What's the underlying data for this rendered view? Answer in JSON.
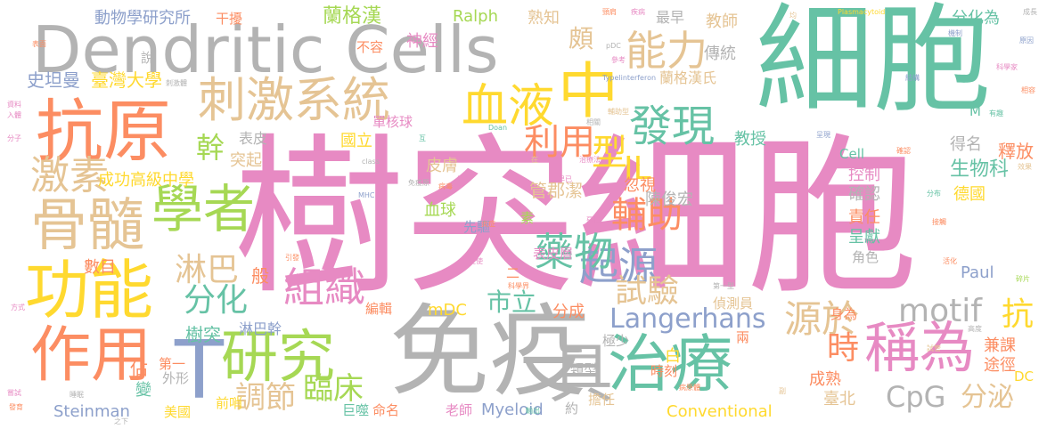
{
  "palette": {
    "pink": "#e78ac3",
    "green": "#66c2a5",
    "gray": "#b3b3b3",
    "orange": "#fc8d62",
    "blue": "#8da0cb",
    "lime": "#a6d854",
    "yellow": "#ffd92f",
    "tan": "#e5c494"
  },
  "words": [
    {
      "text": "樹突細胞",
      "color": "pink"
    },
    {
      "text": "細胞",
      "color": "green"
    },
    {
      "text": "Dendritic Cells",
      "color": "gray"
    },
    {
      "text": "免疫",
      "color": "gray"
    },
    {
      "text": "抗原",
      "color": "orange"
    },
    {
      "text": "刺激系統",
      "color": "tan"
    },
    {
      "text": "中",
      "color": "yellow"
    },
    {
      "text": "血液",
      "color": "yellow"
    },
    {
      "text": "能力",
      "color": "tan"
    },
    {
      "text": "功能",
      "color": "yellow"
    },
    {
      "text": "骨髓",
      "color": "tan"
    },
    {
      "text": "學者",
      "color": "lime"
    },
    {
      "text": "作用",
      "color": "orange"
    },
    {
      "text": "研究",
      "color": "lime"
    },
    {
      "text": "T",
      "color": "blue"
    },
    {
      "text": "治療",
      "color": "green"
    },
    {
      "text": "稱為",
      "color": "pink"
    },
    {
      "text": "具",
      "color": "gray"
    },
    {
      "text": "發現",
      "color": "green"
    },
    {
      "text": "激素",
      "color": "tan"
    },
    {
      "text": "Langerhans",
      "color": "blue"
    },
    {
      "text": "motif",
      "color": "gray"
    },
    {
      "text": "CpG",
      "color": "gray"
    },
    {
      "text": "源於",
      "color": "tan"
    },
    {
      "text": "起源",
      "color": "blue"
    },
    {
      "text": "型",
      "color": "yellow"
    },
    {
      "text": "利用",
      "color": "orange"
    },
    {
      "text": "輔助",
      "color": "orange"
    },
    {
      "text": "IL",
      "color": "yellow"
    },
    {
      "text": "藥物",
      "color": "green"
    },
    {
      "text": "組織",
      "color": "pink"
    },
    {
      "text": "淋巴",
      "color": "tan"
    },
    {
      "text": "分化",
      "color": "green"
    },
    {
      "text": "幹",
      "color": "lime"
    },
    {
      "text": "時",
      "color": "orange"
    },
    {
      "text": "臨床",
      "color": "lime"
    },
    {
      "text": "調節",
      "color": "tan"
    },
    {
      "text": "試驗",
      "color": "tan"
    },
    {
      "text": "抗",
      "color": "yellow"
    },
    {
      "text": "分泌",
      "color": "tan"
    },
    {
      "text": "市立",
      "color": "green"
    },
    {
      "text": "頗",
      "color": "tan"
    },
    {
      "text": "Steinman",
      "color": "blue"
    },
    {
      "text": "Myeloid",
      "color": "blue"
    },
    {
      "text": "Conventional",
      "color": "yellow"
    },
    {
      "text": "Paul",
      "color": "blue"
    },
    {
      "text": "mDC",
      "color": "yellow"
    },
    {
      "text": "Ralph",
      "color": "lime"
    },
    {
      "text": "動物學研究所",
      "color": "blue"
    },
    {
      "text": "干擾",
      "color": "orange"
    },
    {
      "text": "蘭格漢",
      "color": "lime"
    },
    {
      "text": "熟知",
      "color": "tan"
    },
    {
      "text": "分化為",
      "color": "green"
    },
    {
      "text": "教師",
      "color": "tan"
    },
    {
      "text": "最早",
      "color": "gray"
    },
    {
      "text": "傳統",
      "color": "gray"
    },
    {
      "text": "神經",
      "color": "pink"
    },
    {
      "text": "不容",
      "color": "orange"
    },
    {
      "text": "史坦曼",
      "color": "blue"
    },
    {
      "text": "臺灣大學",
      "color": "yellow"
    },
    {
      "text": "蘭格漢氏",
      "color": "tan"
    },
    {
      "text": "國立",
      "color": "yellow"
    },
    {
      "text": "管郡潔",
      "color": "tan"
    },
    {
      "text": "陳俊宏",
      "color": "gray"
    },
    {
      "text": "單核球",
      "color": "pink"
    },
    {
      "text": "成功高級中學",
      "color": "yellow"
    },
    {
      "text": "生物科",
      "color": "green"
    },
    {
      "text": "釋放",
      "color": "orange"
    },
    {
      "text": "德國",
      "color": "yellow"
    },
    {
      "text": "得名",
      "color": "gray"
    },
    {
      "text": "控制",
      "color": "pink"
    },
    {
      "text": "確認",
      "color": "gray"
    },
    {
      "text": "責任",
      "color": "orange"
    },
    {
      "text": "呈獻",
      "color": "green"
    },
    {
      "text": "教授",
      "color": "green"
    },
    {
      "text": "皮膚",
      "color": "tan"
    },
    {
      "text": "表皮",
      "color": "gray"
    },
    {
      "text": "突起",
      "color": "tan"
    },
    {
      "text": "血球",
      "color": "lime"
    },
    {
      "text": "忽視",
      "color": "orange"
    },
    {
      "text": "表皮層",
      "color": "pink"
    },
    {
      "text": "角色",
      "color": "gray"
    },
    {
      "text": "先驅",
      "color": "blue"
    },
    {
      "text": "數目",
      "color": "orange"
    },
    {
      "text": "般",
      "color": "orange"
    },
    {
      "text": "樹突",
      "color": "green"
    },
    {
      "text": "淋巴幹",
      "color": "blue"
    },
    {
      "text": "編輯",
      "color": "orange"
    },
    {
      "text": "分成",
      "color": "orange"
    },
    {
      "text": "極少",
      "color": "gray"
    },
    {
      "text": "兩",
      "color": "orange"
    },
    {
      "text": "白",
      "color": "yellow"
    },
    {
      "text": "時刻",
      "color": "orange"
    },
    {
      "text": "成熟",
      "color": "orange"
    },
    {
      "text": "臺北",
      "color": "tan"
    },
    {
      "text": "身為",
      "color": "orange"
    },
    {
      "text": "兼課",
      "color": "orange"
    },
    {
      "text": "途徑",
      "color": "orange"
    },
    {
      "text": "偵測員",
      "color": "tan"
    },
    {
      "text": "第一",
      "color": "orange"
    },
    {
      "text": "外形",
      "color": "gray"
    },
    {
      "text": "前哨",
      "color": "yellow"
    },
    {
      "text": "美國",
      "color": "yellow"
    },
    {
      "text": "變",
      "color": "green"
    },
    {
      "text": "佔",
      "color": "orange"
    },
    {
      "text": "巨噬",
      "color": "green"
    },
    {
      "text": "命名",
      "color": "orange"
    },
    {
      "text": "老師",
      "color": "pink"
    },
    {
      "text": "約",
      "color": "gray"
    },
    {
      "text": "擔任",
      "color": "tan"
    },
    {
      "text": "類型",
      "color": "gray"
    },
    {
      "text": "DC",
      "color": "yellow"
    },
    {
      "text": "M",
      "color": "green"
    },
    {
      "text": "Cell",
      "color": "green"
    },
    {
      "text": "說",
      "color": "gray"
    },
    {
      "text": "素",
      "color": "lime"
    },
    {
      "text": "pDC",
      "color": "gray"
    },
    {
      "text": "Plasmacytoid",
      "color": "yellow"
    },
    {
      "text": "Typelinterferon",
      "color": "blue"
    },
    {
      "text": "MHC",
      "color": "blue"
    },
    {
      "text": "Doan",
      "color": "green"
    },
    {
      "text": "class",
      "color": "gray"
    },
    {
      "text": "頸肩",
      "color": "orange"
    },
    {
      "text": "疾病",
      "color": "pink"
    },
    {
      "text": "成長",
      "color": "gray"
    },
    {
      "text": "參考",
      "color": "pink"
    },
    {
      "text": "均",
      "color": "tan"
    },
    {
      "text": "機制",
      "color": "blue"
    },
    {
      "text": "科學家",
      "color": "pink"
    },
    {
      "text": "原因",
      "color": "blue"
    },
    {
      "text": "表面",
      "color": "orange"
    },
    {
      "text": "資料",
      "color": "pink"
    },
    {
      "text": "入體",
      "color": "pink"
    },
    {
      "text": "分子",
      "color": "pink"
    },
    {
      "text": "刺激體",
      "color": "gray"
    },
    {
      "text": "結構",
      "color": "blue"
    },
    {
      "text": "相容",
      "color": "orange"
    },
    {
      "text": "有趣",
      "color": "green"
    },
    {
      "text": "治療法",
      "color": "pink"
    },
    {
      "text": "病毒",
      "color": "orange"
    },
    {
      "text": "發育",
      "color": "orange"
    },
    {
      "text": "方式",
      "color": "pink"
    },
    {
      "text": "之下",
      "color": "gray"
    },
    {
      "text": "輔助型",
      "color": "tan"
    },
    {
      "text": "病原體",
      "color": "orange"
    },
    {
      "text": "第一型",
      "color": "gray"
    },
    {
      "text": "炎症",
      "color": "orange"
    },
    {
      "text": "惡性",
      "color": "pink"
    },
    {
      "text": "科學界",
      "color": "orange"
    },
    {
      "text": "呈現",
      "color": "blue"
    },
    {
      "text": "相關",
      "color": "gray"
    },
    {
      "text": "確認",
      "color": "orange"
    },
    {
      "text": "免疫原",
      "color": "gray"
    },
    {
      "text": "促使",
      "color": "pink"
    },
    {
      "text": "嘗試",
      "color": "pink"
    },
    {
      "text": "睡眠",
      "color": "gray"
    },
    {
      "text": "輸出",
      "color": "green"
    },
    {
      "text": "引發",
      "color": "orange"
    },
    {
      "text": "活化",
      "color": "orange"
    },
    {
      "text": "碎片",
      "color": "lime"
    },
    {
      "text": "效果",
      "color": "tan"
    },
    {
      "text": "分布",
      "color": "green"
    },
    {
      "text": "接觸",
      "color": "orange"
    },
    {
      "text": "試管",
      "color": "tan"
    },
    {
      "text": "高度",
      "color": "gray"
    },
    {
      "text": "副",
      "color": "tan"
    },
    {
      "text": "二",
      "color": "orange"
    },
    {
      "text": "早已",
      "color": "pink"
    },
    {
      "text": "互",
      "color": "green"
    },
    {
      "text": "在",
      "color": "tan"
    },
    {
      "text": "免",
      "color": "pink"
    }
  ]
}
